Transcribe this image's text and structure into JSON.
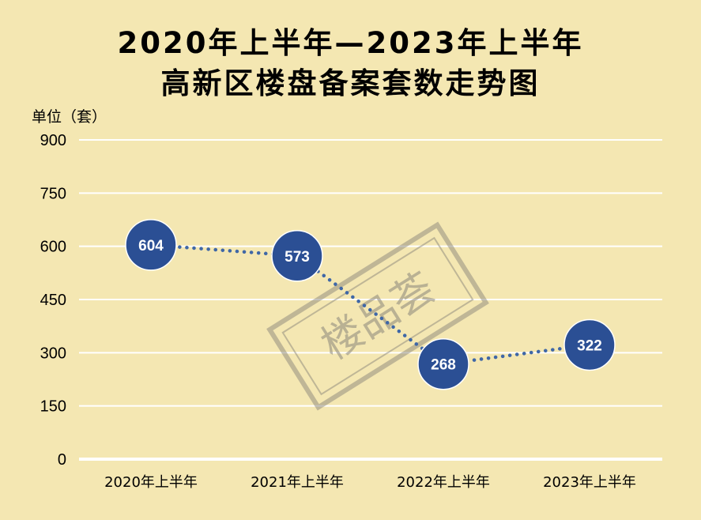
{
  "title": {
    "line1": "2020年上半年—2023年上半年",
    "line2": "高新区楼盘备案套数走势图"
  },
  "unit_label": "单位（套）",
  "watermark": {
    "text": "楼品荟"
  },
  "colors": {
    "background": "#f4e7b2",
    "point_fill": "#2b4f94",
    "point_stroke": "#ffffff",
    "line": "#3f67a6",
    "gridline": "#ffffff",
    "watermark": "#8a857a"
  },
  "chart_data": {
    "type": "line",
    "title": "2020年上半年—2023年上半年 高新区楼盘备案套数走势图",
    "ylabel": "单位（套）",
    "xlabel": "",
    "ylim": [
      0,
      900
    ],
    "y_ticks": [
      0,
      150,
      300,
      450,
      600,
      750,
      900
    ],
    "grid": true,
    "categories": [
      "2020年上半年",
      "2021年上半年",
      "2022年上半年",
      "2023年上半年"
    ],
    "values": [
      604,
      573,
      268,
      322
    ],
    "line_style": "dotted",
    "marker": "circle-with-value-label"
  }
}
